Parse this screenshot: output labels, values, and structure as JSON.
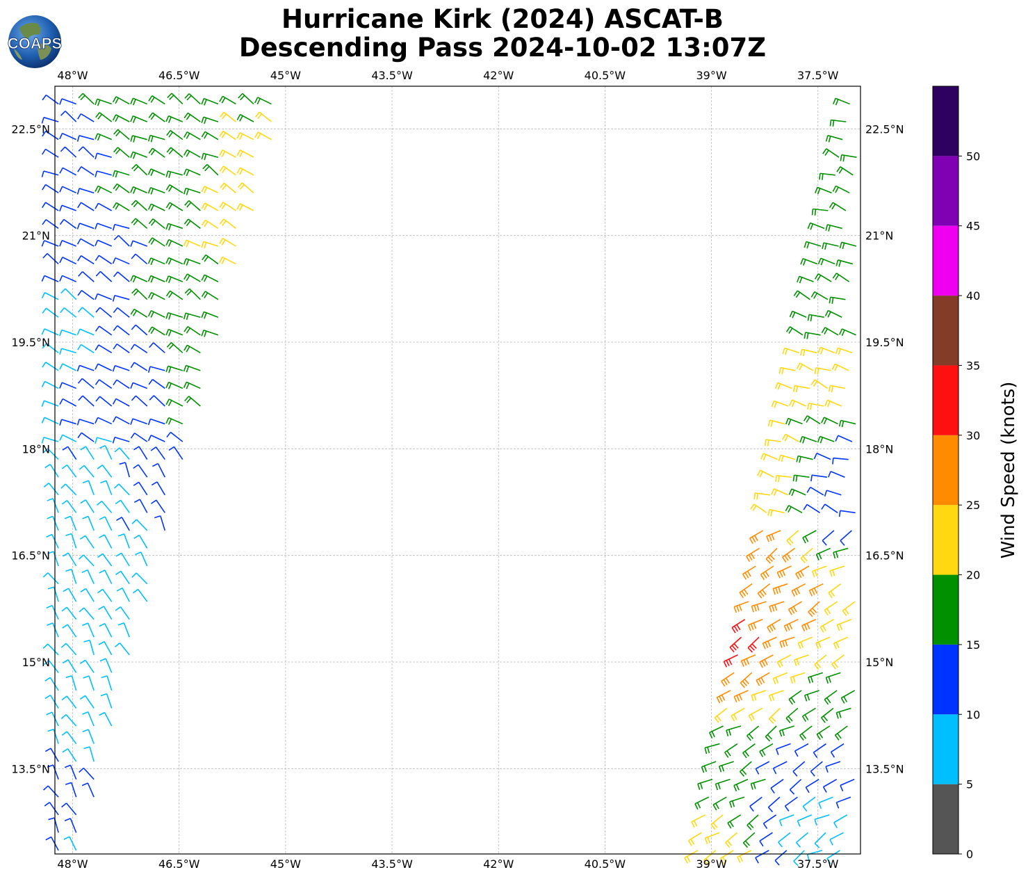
{
  "logo": {
    "text": "COAPS"
  },
  "title": {
    "line1": "Hurricane Kirk (2024) ASCAT-B",
    "line2": "Descending Pass 2024-10-02 13:07Z"
  },
  "map": {
    "lon_labels": [
      "48°W",
      "46.5°W",
      "45°W",
      "43.5°W",
      "42°W",
      "40.5°W",
      "39°W",
      "37.5°W"
    ],
    "lat_labels": [
      "22.5°N",
      "21°N",
      "19.5°N",
      "18°N",
      "16.5°N",
      "15°N",
      "13.5°N"
    ],
    "lon_values": [
      -48,
      -46.5,
      -45,
      -43.5,
      -42,
      -40.5,
      -39,
      -37.5
    ],
    "lat_values": [
      22.5,
      21,
      19.5,
      18,
      16.5,
      15,
      13.5
    ],
    "lon_range": [
      -48.25,
      -36.9
    ],
    "lat_range": [
      12.3,
      23.1
    ],
    "grid": true
  },
  "colorbar": {
    "title": "Wind Speed (knots)",
    "tick_labels": [
      "0",
      "5",
      "10",
      "15",
      "20",
      "25",
      "30",
      "35",
      "40",
      "45",
      "50"
    ],
    "levels": [
      0,
      5,
      10,
      15,
      20,
      25,
      30,
      35,
      40,
      45,
      50,
      55
    ],
    "colors": [
      "#555555",
      "#00bfff",
      "#0033ff",
      "#009000",
      "#ffd811",
      "#ff8c00",
      "#ff1010",
      "#823c28",
      "#f000f0",
      "#8000b4",
      "#2e0060"
    ]
  },
  "chart_data": {
    "type": "scatter",
    "title": "Hurricane Kirk (2024) ASCAT-B Descending Pass 2024-10-02 13:07Z",
    "xlabel": "",
    "ylabel": "",
    "colorbar_label": "Wind Speed (knots)",
    "xlim": [
      -48.25,
      -36.9
    ],
    "ylim": [
      12.3,
      23.1
    ],
    "swaths": [
      {
        "name": "",
        "approx_lon_range": [
          -48.2,
          -45.0
        ],
        "approx_lat_range": [
          12.3,
          23.1
        ],
        "samples": [
          {
            "lat": 22.9,
            "lon": -47.5,
            "speed_kt": 17
          },
          {
            "lat": 22.5,
            "lon": -48.0,
            "speed_kt": 12
          },
          {
            "lat": 21.9,
            "lon": -46.5,
            "speed_kt": 17
          },
          {
            "lat": 22.0,
            "lon": -45.2,
            "speed_kt": 21
          },
          {
            "lat": 21.2,
            "lon": -45.5,
            "speed_kt": 22
          },
          {
            "lat": 20.5,
            "lon": -47.5,
            "speed_kt": 13
          },
          {
            "lat": 20.0,
            "lon": -46.5,
            "speed_kt": 17
          },
          {
            "lat": 19.6,
            "lon": -48.1,
            "speed_kt": 8
          },
          {
            "lat": 19.0,
            "lon": -47.0,
            "speed_kt": 13
          },
          {
            "lat": 18.8,
            "lon": -46.2,
            "speed_kt": 17
          },
          {
            "lat": 17.5,
            "lon": -47.5,
            "speed_kt": 9
          },
          {
            "lat": 17.6,
            "lon": -46.7,
            "speed_kt": 12
          },
          {
            "lat": 16.5,
            "lon": -47.8,
            "speed_kt": 8
          },
          {
            "lat": 15.5,
            "lon": -47.5,
            "speed_kt": 8
          },
          {
            "lat": 14.2,
            "lon": -47.8,
            "speed_kt": 8
          },
          {
            "lat": 13.2,
            "lon": -48.0,
            "speed_kt": 11
          }
        ]
      },
      {
        "name": "",
        "approx_lon_range": [
          -39.2,
          -36.9
        ],
        "approx_lat_range": [
          12.3,
          23.1
        ],
        "samples": [
          {
            "lat": 22.5,
            "lon": -37.0,
            "speed_kt": 17
          },
          {
            "lat": 21.0,
            "lon": -37.3,
            "speed_kt": 17
          },
          {
            "lat": 19.8,
            "lon": -37.4,
            "speed_kt": 17
          },
          {
            "lat": 19.2,
            "lon": -37.5,
            "speed_kt": 22
          },
          {
            "lat": 17.8,
            "lon": -38.0,
            "speed_kt": 22
          },
          {
            "lat": 17.5,
            "lon": -37.2,
            "speed_kt": 12
          },
          {
            "lat": 16.3,
            "lon": -38.3,
            "speed_kt": 27
          },
          {
            "lat": 15.2,
            "lon": -38.5,
            "speed_kt": 32
          },
          {
            "lat": 15.0,
            "lon": -38.2,
            "speed_kt": 27
          },
          {
            "lat": 14.8,
            "lon": -37.9,
            "speed_kt": 22
          },
          {
            "lat": 14.5,
            "lon": -37.4,
            "speed_kt": 17
          },
          {
            "lat": 13.6,
            "lon": -38.8,
            "speed_kt": 17
          },
          {
            "lat": 13.3,
            "lon": -37.6,
            "speed_kt": 12
          },
          {
            "lat": 12.9,
            "lon": -37.5,
            "speed_kt": 8
          },
          {
            "lat": 12.5,
            "lon": -39.0,
            "speed_kt": 22
          }
        ]
      }
    ]
  }
}
